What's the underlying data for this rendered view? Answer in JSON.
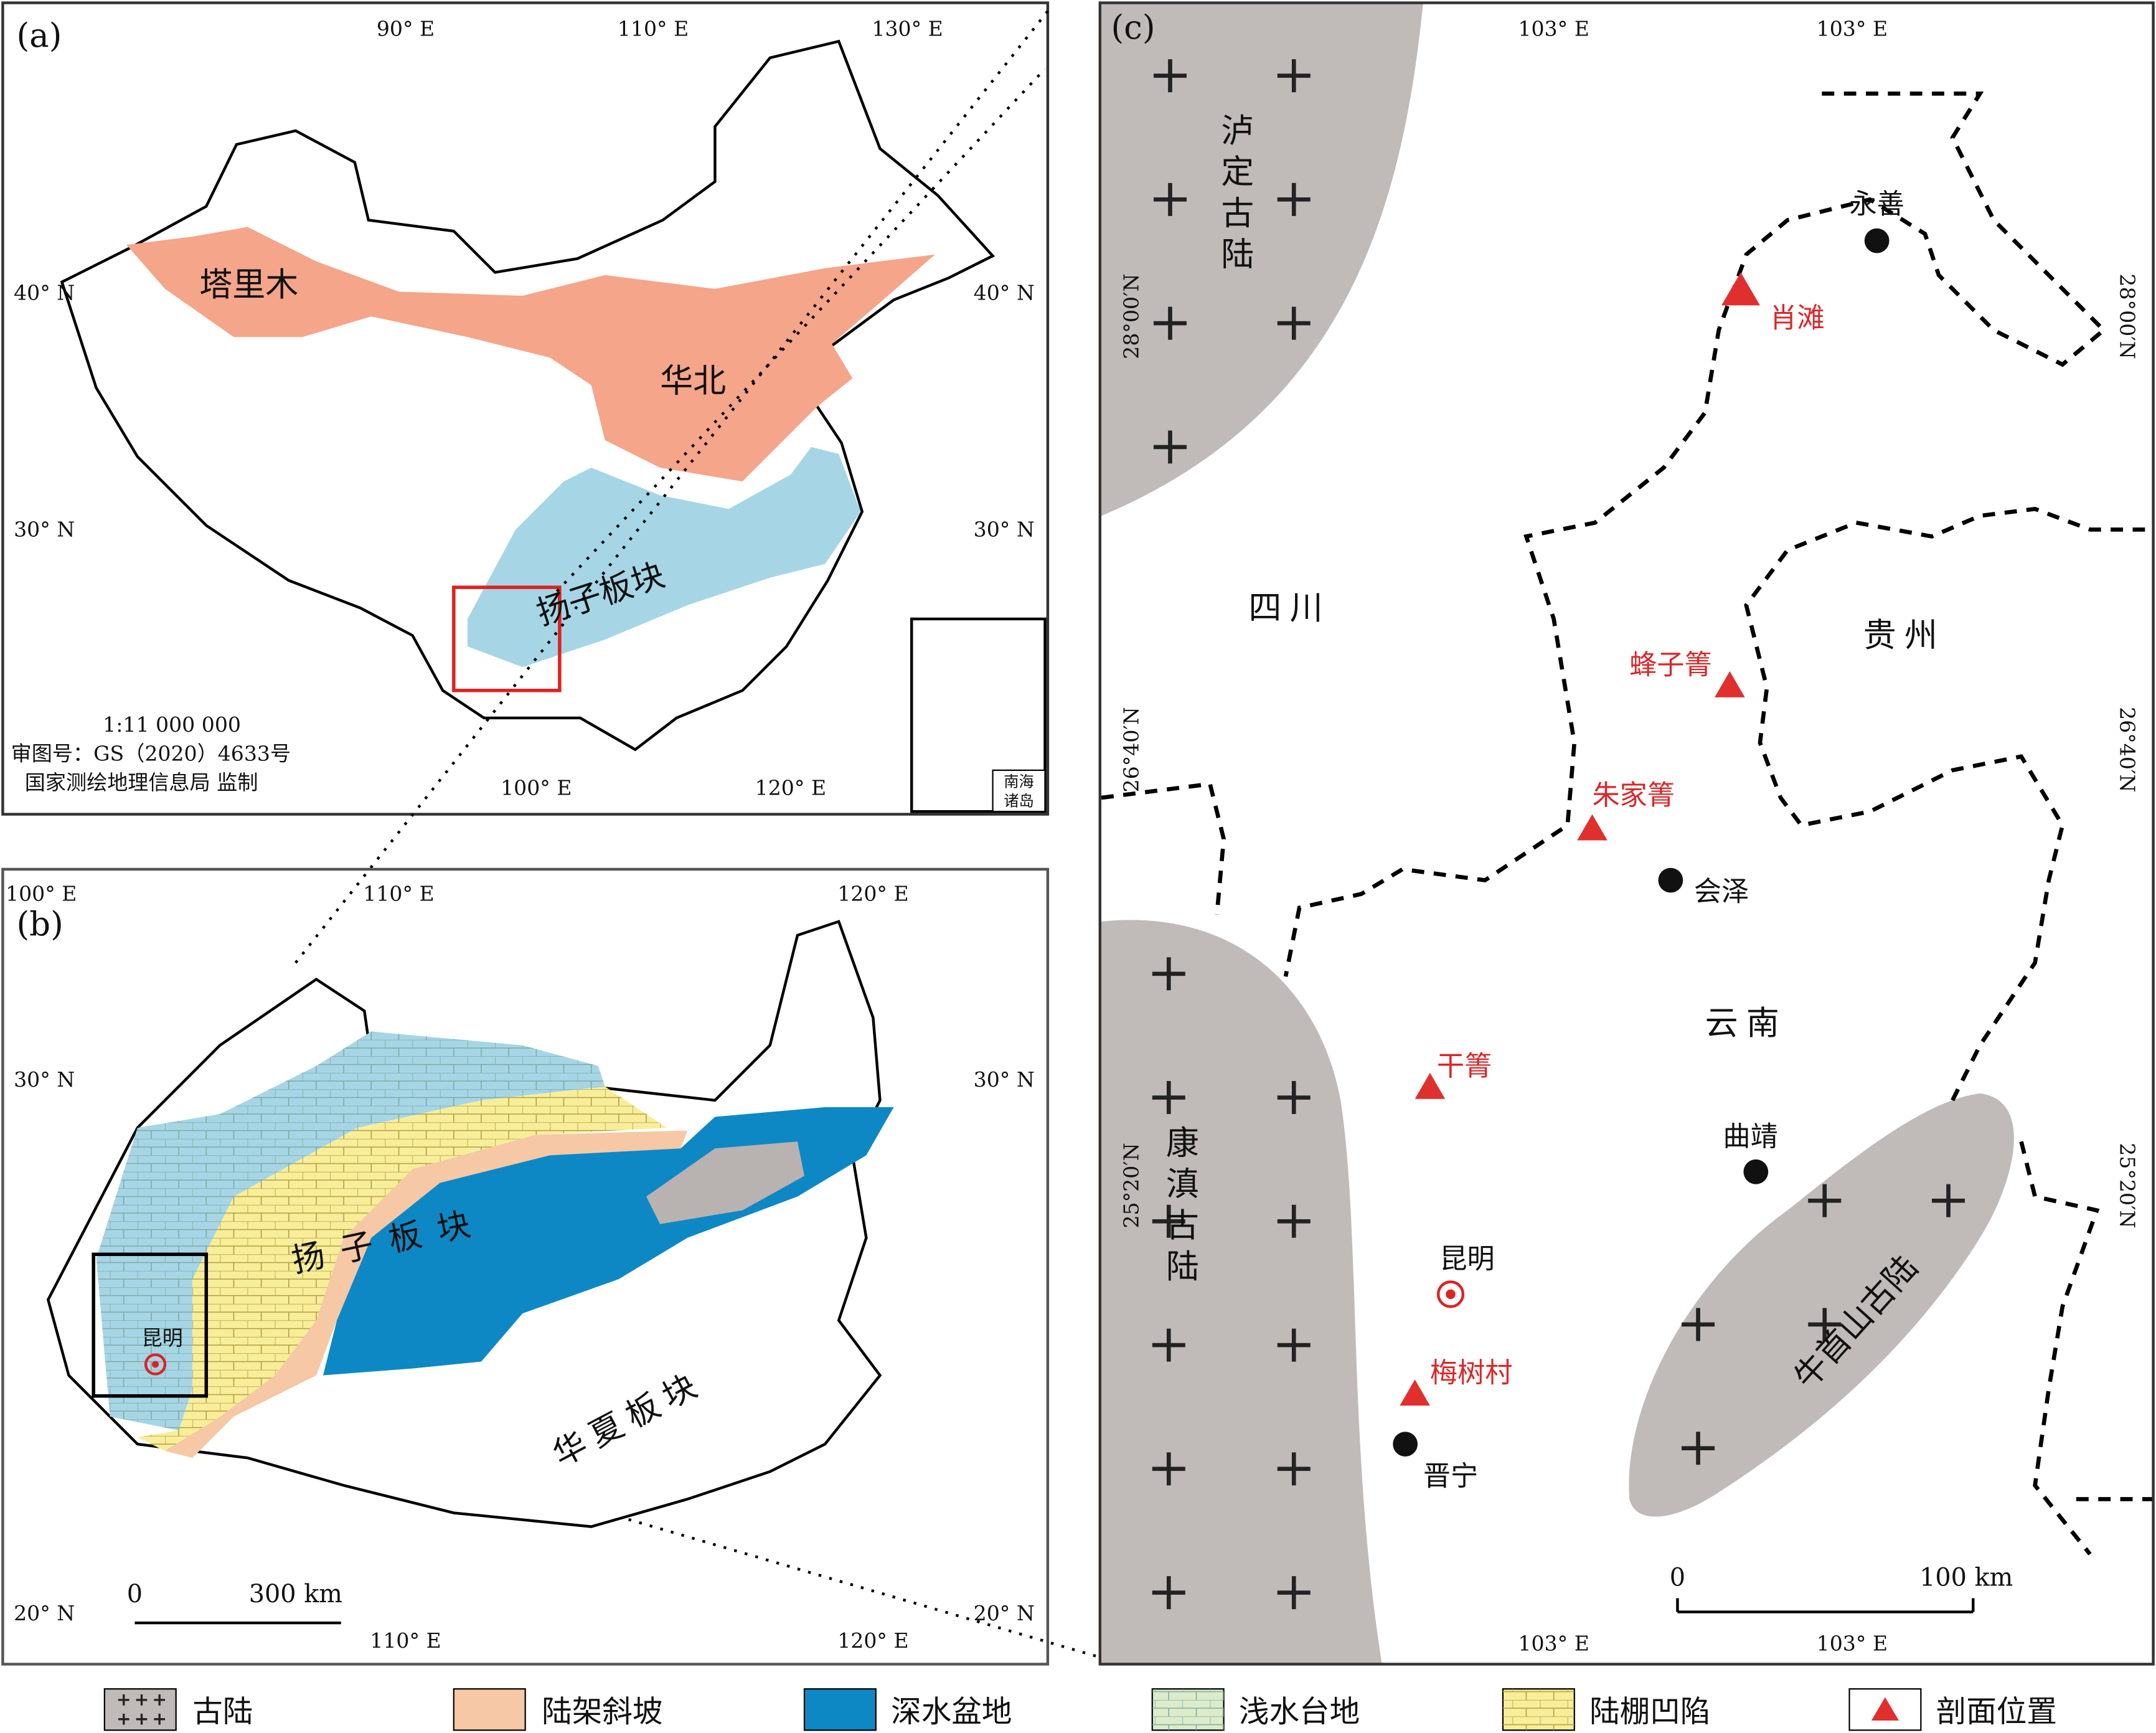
{
  "panel_a": {
    "label": "(a)",
    "lon_top": [
      "90° E",
      "110° E",
      "130° E"
    ],
    "lon_bottom": [
      "100° E",
      "120° E"
    ],
    "lat": [
      "40° N",
      "30° N"
    ],
    "regions": {
      "tarim": "塔里木",
      "north_china": "华北",
      "yangtze": "扬子板块"
    },
    "scale": "1:11 000 000",
    "map_approval": "审图号：GS（2020）4633号",
    "publisher": "国家测绘地理信息局 监制",
    "inset_label": [
      "南海",
      "诸岛"
    ]
  },
  "panel_b": {
    "label": "(b)",
    "lon_top": [
      "100° E",
      "110° E",
      "120° E"
    ],
    "lon_bottom": [
      "110° E",
      "120° E"
    ],
    "lat": [
      "30° N",
      "20° N"
    ],
    "yangtze": "扬子板块",
    "cathaysia": "华夏板块",
    "city": "昆明",
    "scale_bar": [
      "0",
      "300 km"
    ]
  },
  "panel_c": {
    "label": "(c)",
    "lon_top": [
      "103° E",
      "103° E"
    ],
    "lon_bottom": [
      "103° E",
      "103° E"
    ],
    "lat": [
      "28°00′N",
      "26°40′N",
      "25°20′N"
    ],
    "oldlands": [
      "泸定古陆",
      "康滇古陆",
      "牛首山古陆"
    ],
    "provinces": [
      "四川",
      "贵州",
      "云南"
    ],
    "cities": [
      "永善",
      "会泽",
      "曲靖",
      "昆明",
      "晋宁"
    ],
    "sections": [
      "肖滩",
      "蜂子箐",
      "朱家箐",
      "干箐",
      "梅树村"
    ],
    "scale_bar": [
      "0",
      "100 km"
    ]
  },
  "legend": [
    "古陆",
    "陆架斜坡",
    "深水盆地",
    "浅水台地",
    "陆棚凹陷",
    "剖面位置"
  ]
}
